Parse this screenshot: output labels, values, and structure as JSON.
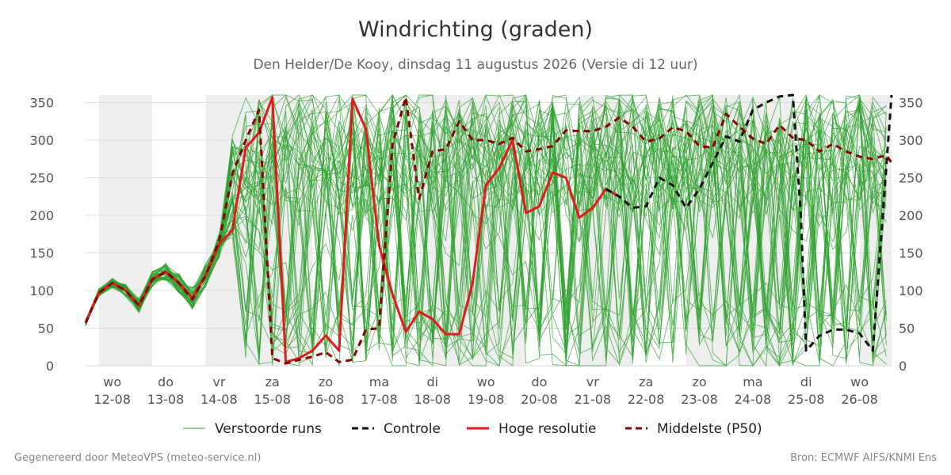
{
  "chart_data": {
    "type": "line",
    "title": "Windrichting (graden)",
    "subtitle": "Den Helder/De Kooy, dinsdag 11 augustus 2026 (Versie di 12 uur)",
    "ylim": [
      0,
      360
    ],
    "yticks": [
      0,
      50,
      100,
      150,
      200,
      250,
      300,
      350
    ],
    "xlim": [
      0,
      15.1
    ],
    "x_ticks": [
      {
        "x": 0.5,
        "day": "wo",
        "date": "12-08"
      },
      {
        "x": 1.5,
        "day": "do",
        "date": "13-08"
      },
      {
        "x": 2.5,
        "day": "vr",
        "date": "14-08"
      },
      {
        "x": 3.5,
        "day": "za",
        "date": "15-08"
      },
      {
        "x": 4.5,
        "day": "zo",
        "date": "16-08"
      },
      {
        "x": 5.5,
        "day": "ma",
        "date": "17-08"
      },
      {
        "x": 6.5,
        "day": "di",
        "date": "18-08"
      },
      {
        "x": 7.5,
        "day": "wo",
        "date": "19-08"
      },
      {
        "x": 8.5,
        "day": "do",
        "date": "20-08"
      },
      {
        "x": 9.5,
        "day": "vr",
        "date": "21-08"
      },
      {
        "x": 10.5,
        "day": "za",
        "date": "22-08"
      },
      {
        "x": 11.5,
        "day": "zo",
        "date": "23-08"
      },
      {
        "x": 12.5,
        "day": "ma",
        "date": "24-08"
      },
      {
        "x": 13.5,
        "day": "di",
        "date": "25-08"
      },
      {
        "x": 14.5,
        "day": "wo",
        "date": "26-08"
      }
    ],
    "shaded_days": [
      [
        0.25,
        1.25
      ],
      [
        2.25,
        4.25
      ],
      [
        6.25,
        8.25
      ],
      [
        9.25,
        10.25
      ],
      [
        11.25,
        13.25
      ],
      [
        14.5,
        15.1
      ]
    ],
    "grid": true,
    "legend_position": "bottom",
    "series": [
      {
        "name": "Hoge resolutie",
        "style": "solid",
        "color": "#e31a1c",
        "x": [
          0.0,
          0.25,
          0.5,
          0.75,
          1.0,
          1.25,
          1.5,
          1.75,
          2.0,
          2.25,
          2.5,
          2.75,
          3.0,
          3.25,
          3.5,
          3.75,
          4.0,
          4.25,
          4.5,
          4.75,
          5.0,
          5.25,
          5.5,
          5.75,
          6.0,
          6.25,
          6.5,
          6.75,
          7.0,
          7.25,
          7.5,
          7.75,
          8.0,
          8.25,
          8.5,
          8.75,
          9.0,
          9.25,
          9.5,
          9.75,
          10.0
        ],
        "y": [
          57,
          97,
          110,
          100,
          80,
          115,
          125,
          110,
          90,
          120,
          162,
          180,
          290,
          310,
          357,
          5,
          10,
          20,
          40,
          20,
          355,
          315,
          160,
          95,
          45,
          72,
          62,
          42,
          42,
          110,
          240,
          263,
          300,
          203,
          212,
          257,
          250,
          197,
          210,
          235,
          225
        ]
      },
      {
        "name": "Controle",
        "style": "dashed",
        "color": "#111111",
        "x": [
          9.75,
          10.0,
          10.25,
          10.5,
          10.75,
          11.0,
          11.25,
          11.5,
          11.75,
          12.0,
          12.25,
          12.5,
          12.75,
          13.0,
          13.25,
          13.4,
          13.5,
          13.75,
          14.0,
          14.25,
          14.5,
          14.75,
          15.1
        ],
        "y": [
          235,
          225,
          210,
          212,
          250,
          240,
          210,
          235,
          270,
          305,
          298,
          340,
          350,
          358,
          360,
          200,
          20,
          40,
          48,
          48,
          43,
          20,
          360
        ]
      },
      {
        "name": "Middelste (P50)",
        "style": "dashed",
        "color": "#8b0000",
        "x": [
          0.0,
          0.25,
          0.5,
          0.75,
          1.0,
          1.25,
          1.5,
          1.75,
          2.0,
          2.25,
          2.5,
          2.75,
          3.0,
          3.25,
          3.5,
          3.75,
          4.0,
          4.25,
          4.5,
          4.75,
          5.0,
          5.25,
          5.5,
          5.75,
          6.0,
          6.25,
          6.5,
          6.75,
          7.0,
          7.25,
          7.5,
          7.75,
          8.0,
          8.25,
          8.5,
          8.75,
          9.0,
          9.25,
          9.5,
          9.75,
          10.0,
          10.25,
          10.5,
          10.75,
          11.0,
          11.25,
          11.5,
          11.75,
          12.0,
          12.25,
          12.5,
          12.75,
          13.0,
          13.25,
          13.5,
          13.75,
          14.0,
          14.25,
          14.5,
          14.75,
          15.0,
          15.1
        ],
        "y": [
          57,
          97,
          110,
          100,
          80,
          115,
          125,
          110,
          88,
          120,
          165,
          255,
          300,
          340,
          10,
          3,
          8,
          12,
          18,
          5,
          8,
          48,
          50,
          295,
          357,
          222,
          285,
          288,
          325,
          300,
          300,
          295,
          303,
          285,
          288,
          292,
          313,
          312,
          312,
          318,
          330,
          318,
          298,
          302,
          317,
          312,
          292,
          290,
          335,
          318,
          302,
          295,
          320,
          303,
          300,
          285,
          295,
          285,
          278,
          275,
          280,
          270
        ]
      }
    ],
    "legend": [
      {
        "label": "Verstoorde runs",
        "style": "thin",
        "color": "#2ca02c"
      },
      {
        "label": "Controle",
        "style": "dashed",
        "color": "#111111"
      },
      {
        "label": "Hoge resolutie",
        "style": "solid",
        "color": "#e31a1c"
      },
      {
        "label": "Middelste (P50)",
        "style": "dashed",
        "color": "#8b0000"
      }
    ],
    "ensemble": {
      "name": "Verstoorde runs",
      "members": 50,
      "color": "#2ca02c",
      "x_step": 0.25,
      "x_start": 0.0,
      "x_end": 15.1,
      "start_path": [
        57,
        97,
        110,
        100,
        80,
        115,
        125,
        110,
        90,
        120,
        160
      ]
    }
  },
  "footer": {
    "left": "Gegenereerd door MeteoVPS (meteo-service.nl)",
    "right": "Bron: ECMWF AIFS/KNMI Ens"
  }
}
